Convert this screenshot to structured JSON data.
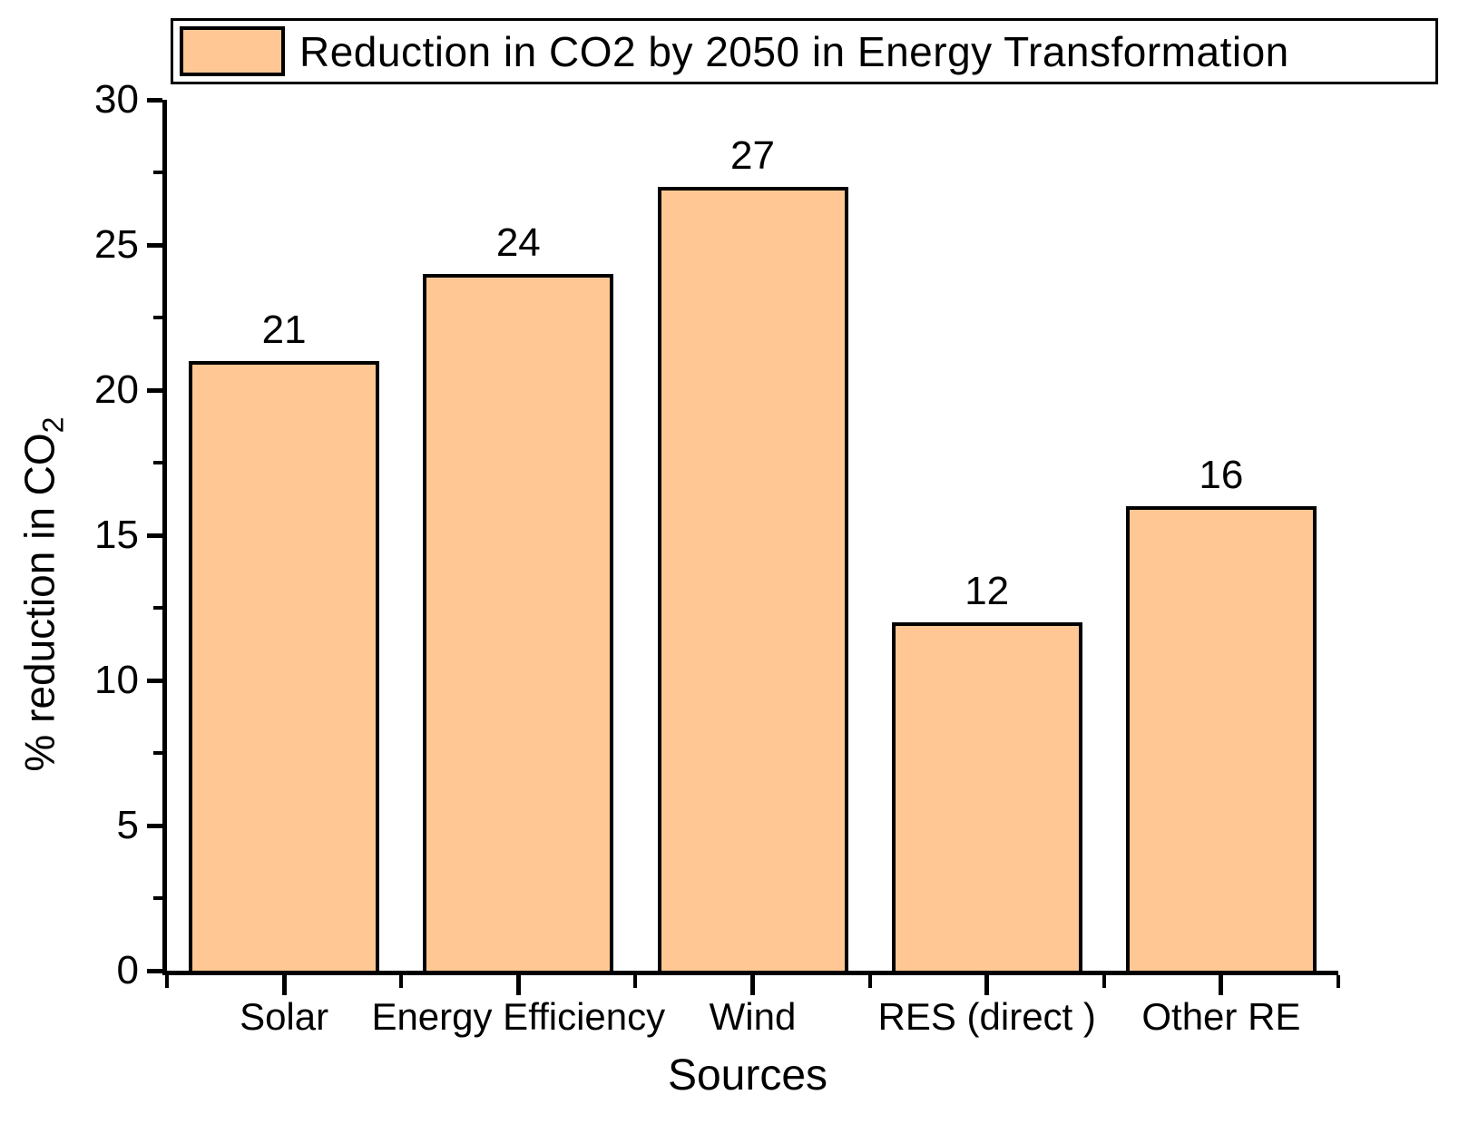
{
  "chart_data": {
    "type": "bar",
    "title": "Reduction in CO2 by 2050 in Energy Transformation",
    "categories": [
      "Solar",
      "Energy Efficiency",
      "Wind",
      "RES (direct )",
      "Other RE"
    ],
    "values": [
      21,
      24,
      27,
      12,
      16
    ],
    "xlabel": "Sources",
    "ylabel_prefix": "% reduction in CO",
    "ylabel_subscript": "2",
    "ylim": [
      0,
      30
    ],
    "yticks_major": [
      0,
      5,
      10,
      15,
      20,
      25,
      30
    ],
    "yticks_minor": [
      2.5,
      7.5,
      12.5,
      17.5,
      22.5,
      27.5
    ],
    "grid": false,
    "legend_position": "top",
    "data_labels": true,
    "colors": {
      "bar_fill": "#FEC794",
      "bar_border": "#000000",
      "axis": "#000000",
      "background": "#FFFFFF"
    }
  }
}
